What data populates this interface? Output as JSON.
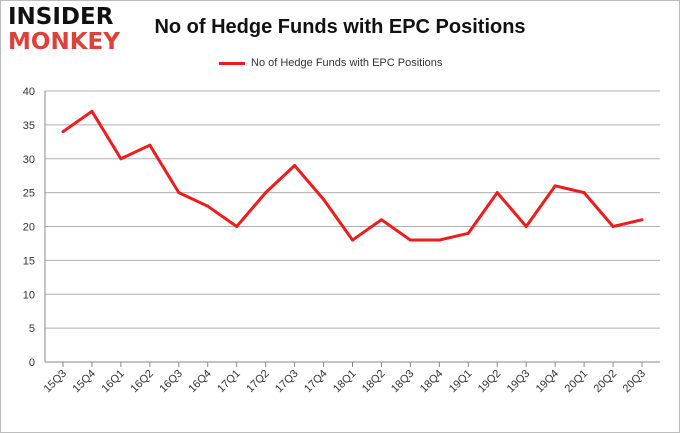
{
  "logo": {
    "line1": "INSIDER",
    "line2": "MONKEY"
  },
  "colors": {
    "series": "#ee1c1c",
    "grid": "#b0b0b0",
    "logo_accent": "#e0403a"
  },
  "chart_data": {
    "type": "line",
    "title": "No of Hedge Funds with EPC Positions",
    "legend_position": "top-center",
    "grid": true,
    "ylim": [
      0,
      40
    ],
    "yticks": [
      0,
      5,
      10,
      15,
      20,
      25,
      30,
      35,
      40
    ],
    "x": [
      "15Q3",
      "15Q4",
      "16Q1",
      "16Q2",
      "16Q3",
      "16Q4",
      "17Q1",
      "17Q2",
      "17Q3",
      "17Q4",
      "18Q1",
      "18Q2",
      "18Q3",
      "18Q4",
      "19Q1",
      "19Q2",
      "19Q3",
      "19Q4",
      "20Q1",
      "20Q2",
      "20Q3"
    ],
    "series": [
      {
        "name": "No of Hedge Funds with EPC Positions",
        "values": [
          34,
          37,
          30,
          32,
          25,
          23,
          20,
          25,
          29,
          24,
          18,
          21,
          18,
          18,
          19,
          25,
          20,
          26,
          25,
          20,
          21
        ]
      }
    ]
  }
}
